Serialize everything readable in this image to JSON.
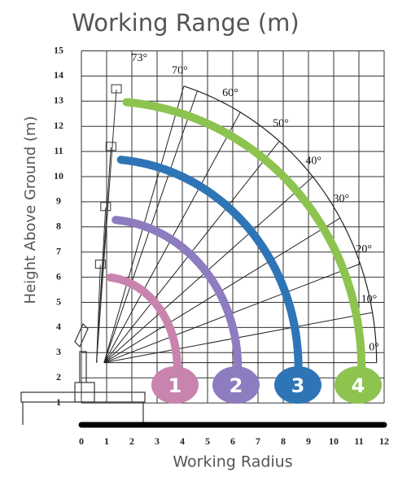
{
  "title": "Working Range (m)",
  "y_axis_label": "Height Above Ground (m)",
  "x_axis_label": "Working Radius",
  "x_ticks": [
    0,
    1,
    2,
    3,
    4,
    5,
    6,
    7,
    8,
    9,
    10,
    11,
    12
  ],
  "y_ticks": [
    1,
    2,
    3,
    4,
    5,
    6,
    7,
    8,
    9,
    10,
    11,
    12,
    13,
    14,
    15
  ],
  "angles": [
    {
      "value": 73,
      "label": "73°"
    },
    {
      "value": 70,
      "label": "70°"
    },
    {
      "value": 60,
      "label": "60°"
    },
    {
      "value": 50,
      "label": "50°"
    },
    {
      "value": 40,
      "label": "40°"
    },
    {
      "value": 30,
      "label": "30°"
    },
    {
      "value": 20,
      "label": "20°"
    },
    {
      "value": 10,
      "label": "10°"
    },
    {
      "value": 0,
      "label": "0°"
    }
  ],
  "sections": [
    {
      "label": "1",
      "color": "#c984ae"
    },
    {
      "label": "2",
      "color": "#8e7cc0"
    },
    {
      "label": "3",
      "color": "#2e75b6"
    },
    {
      "label": "4",
      "color": "#8dc450"
    }
  ]
}
